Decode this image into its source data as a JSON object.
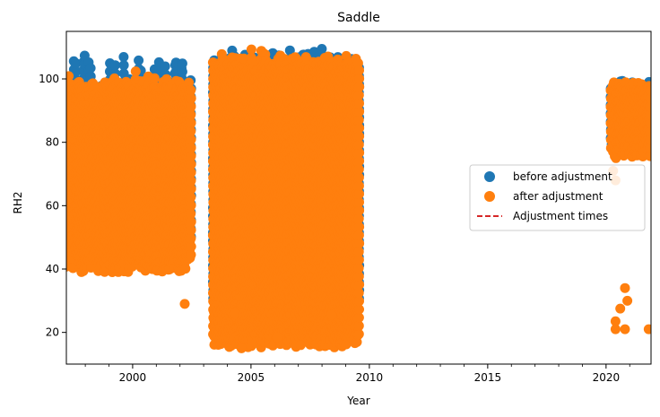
{
  "chart_data": {
    "type": "scatter",
    "title": "Saddle",
    "xlabel": "Year",
    "ylabel": "RH2",
    "xlim": [
      1997.2,
      2021.9
    ],
    "ylim": [
      10,
      115
    ],
    "xticks": [
      2000,
      2005,
      2010,
      2015,
      2020
    ],
    "yticks": [
      20,
      40,
      60,
      80,
      100
    ],
    "grid": false,
    "legend_position": "center-right",
    "series": [
      {
        "name": "before adjustment",
        "color": "#1f77b4",
        "marker": "circle",
        "segments": [
          {
            "x": [
              1997.2,
              2002.5
            ],
            "y_low": 45,
            "y_high": 100,
            "spike_top": 108
          },
          {
            "x": [
              2003.4,
              2009.6
            ],
            "y_low": 30,
            "y_high": 108,
            "spike_top": 110
          },
          {
            "x": [
              2020.2,
              2021.9
            ],
            "y_low": 78,
            "y_high": 100,
            "spike_top": 100
          }
        ],
        "outliers": [
          [
            2008.4,
            30.5
          ],
          [
            2008.4,
            27
          ],
          [
            2005.2,
            20
          ],
          [
            2007.1,
            22.5
          ]
        ]
      },
      {
        "name": "after adjustment",
        "color": "#ff7f0e",
        "marker": "circle",
        "segments": [
          {
            "x": [
              1997.2,
              2002.5
            ],
            "y_low": 39,
            "y_high": 100,
            "spike_top": 103
          },
          {
            "x": [
              2003.4,
              2009.6
            ],
            "y_low": 15,
            "y_high": 107,
            "spike_top": 110
          },
          {
            "x": [
              2020.2,
              2021.9
            ],
            "y_low": 75,
            "y_high": 100,
            "spike_top": 100
          }
        ],
        "outliers": [
          [
            2020.3,
            71
          ],
          [
            2020.4,
            68
          ],
          [
            2020.8,
            34
          ],
          [
            2020.9,
            30
          ],
          [
            2020.6,
            27.5
          ],
          [
            2020.4,
            23.5
          ],
          [
            2020.4,
            21
          ],
          [
            2020.8,
            21
          ],
          [
            2021.8,
            21
          ],
          [
            2004.3,
            26
          ],
          [
            2002.2,
            29
          ],
          [
            2004.6,
            15
          ],
          [
            2007.1,
            16
          ],
          [
            2006.1,
            18.5
          ],
          [
            2008.4,
            25.5
          ]
        ]
      },
      {
        "name": "Adjustment times",
        "color": "#d62728",
        "marker": "dashed-line",
        "x": []
      }
    ]
  }
}
